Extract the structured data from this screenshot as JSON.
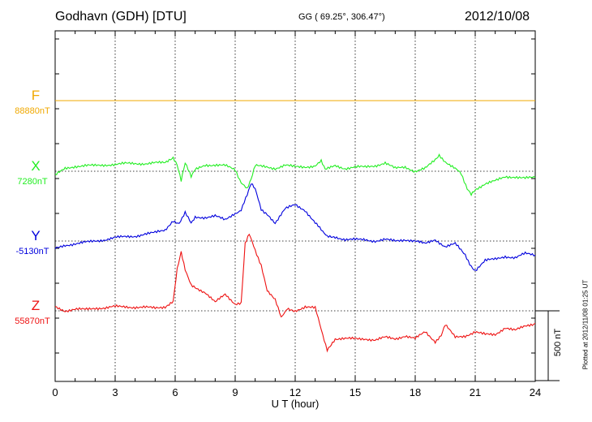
{
  "header": {
    "station": "Godhavn (GDH)  [DTU]",
    "coords": "GG ( 69.25°, 306.47°)",
    "date": "2012/10/08"
  },
  "chart_data": {
    "type": "line",
    "title": "Godhavn (GDH)  [DTU]",
    "xlabel": "U T (hour)",
    "xlim": [
      0,
      24
    ],
    "x_ticks": [
      "0",
      "3",
      "6",
      "9",
      "12",
      "15",
      "18",
      "21",
      "24"
    ],
    "grid": true,
    "scale_bar_nT": 500,
    "scale_bar_label": "500 nT",
    "series": [
      {
        "name": "F",
        "base_label": "88880nT",
        "base_nT": 88880,
        "color": "#f0a800",
        "x": [
          0,
          24
        ],
        "y": [
          0,
          0
        ]
      },
      {
        "name": "X",
        "base_label": "7280nT",
        "base_nT": 7280,
        "color": "#22ee22",
        "x": [
          0,
          0.5,
          1,
          1.5,
          2,
          2.5,
          3,
          3.5,
          4,
          4.5,
          5,
          5.5,
          5.9,
          6.1,
          6.3,
          6.5,
          6.8,
          7.0,
          7.5,
          8,
          8.5,
          9.0,
          9.3,
          9.6,
          9.8,
          10,
          10.5,
          11,
          11.5,
          12,
          12.5,
          13,
          13.3,
          13.5,
          14,
          14.5,
          15,
          15.5,
          16,
          16.5,
          17,
          17.5,
          18,
          18.5,
          19,
          19.2,
          19.5,
          20,
          20.3,
          20.6,
          20.8,
          21.0,
          21.5,
          22,
          22.5,
          23,
          23.5,
          24
        ],
        "y": [
          -30,
          20,
          35,
          40,
          40,
          45,
          50,
          55,
          55,
          55,
          60,
          60,
          90,
          40,
          -70,
          60,
          -40,
          10,
          45,
          45,
          40,
          10,
          -80,
          -130,
          -60,
          40,
          30,
          20,
          45,
          30,
          30,
          40,
          70,
          10,
          40,
          20,
          30,
          30,
          40,
          60,
          20,
          30,
          0,
          20,
          80,
          110,
          70,
          20,
          -20,
          -120,
          -160,
          -130,
          -90,
          -70,
          -40,
          -40,
          -50,
          -45
        ]
      },
      {
        "name": "Y",
        "base_label": "-5130nT",
        "base_nT": -5130,
        "color": "#0000dd",
        "x": [
          0,
          0.5,
          1,
          1.5,
          2,
          2.5,
          3,
          3.5,
          4,
          4.5,
          5,
          5.5,
          5.9,
          6.2,
          6.5,
          6.8,
          7.0,
          7.5,
          8,
          8.5,
          9.0,
          9.3,
          9.6,
          9.8,
          10,
          10.3,
          10.6,
          11,
          11.5,
          12,
          12.5,
          13,
          13.3,
          13.6,
          14,
          14.5,
          15,
          15.5,
          16,
          16.5,
          17,
          17.5,
          18,
          18.5,
          19,
          19.5,
          20,
          20.5,
          20.8,
          21,
          21.5,
          22,
          22.5,
          23,
          23.5,
          24
        ],
        "y": [
          -55,
          -30,
          -20,
          -10,
          0,
          10,
          25,
          30,
          35,
          50,
          60,
          80,
          140,
          130,
          200,
          130,
          170,
          170,
          180,
          150,
          200,
          220,
          330,
          410,
          370,
          230,
          190,
          130,
          230,
          260,
          220,
          130,
          80,
          40,
          30,
          10,
          10,
          10,
          0,
          10,
          0,
          10,
          0,
          -20,
          10,
          -40,
          -20,
          -100,
          -180,
          -210,
          -140,
          -130,
          -110,
          -120,
          -90,
          -100
        ]
      },
      {
        "name": "Z",
        "base_label": "55870nT",
        "base_nT": 55870,
        "color": "#ee1111",
        "x": [
          0,
          0.5,
          1,
          1.5,
          2,
          2.5,
          3,
          3.5,
          4,
          4.5,
          5,
          5.5,
          5.9,
          6.1,
          6.3,
          6.5,
          6.8,
          7.0,
          7.5,
          8,
          8.5,
          9.0,
          9.3,
          9.5,
          9.7,
          10,
          10.3,
          10.6,
          11.0,
          11.3,
          11.6,
          12,
          12.5,
          13,
          13.3,
          13.6,
          14,
          14.5,
          15,
          15.5,
          16,
          16.5,
          17,
          17.5,
          18,
          18.5,
          19,
          19.3,
          19.5,
          20,
          20.5,
          21,
          21.5,
          22,
          22.5,
          23,
          23.5,
          24
        ],
        "y": [
          30,
          0,
          10,
          10,
          20,
          20,
          30,
          30,
          25,
          25,
          20,
          30,
          70,
          300,
          420,
          290,
          190,
          170,
          130,
          60,
          120,
          50,
          50,
          480,
          550,
          430,
          330,
          140,
          80,
          -50,
          20,
          0,
          30,
          20,
          -130,
          -280,
          -200,
          -200,
          -200,
          -200,
          -210,
          -190,
          -200,
          -180,
          -200,
          -150,
          -220,
          -180,
          -100,
          -190,
          -180,
          -150,
          -170,
          -170,
          -120,
          -140,
          -110,
          -90
        ]
      }
    ]
  }
}
